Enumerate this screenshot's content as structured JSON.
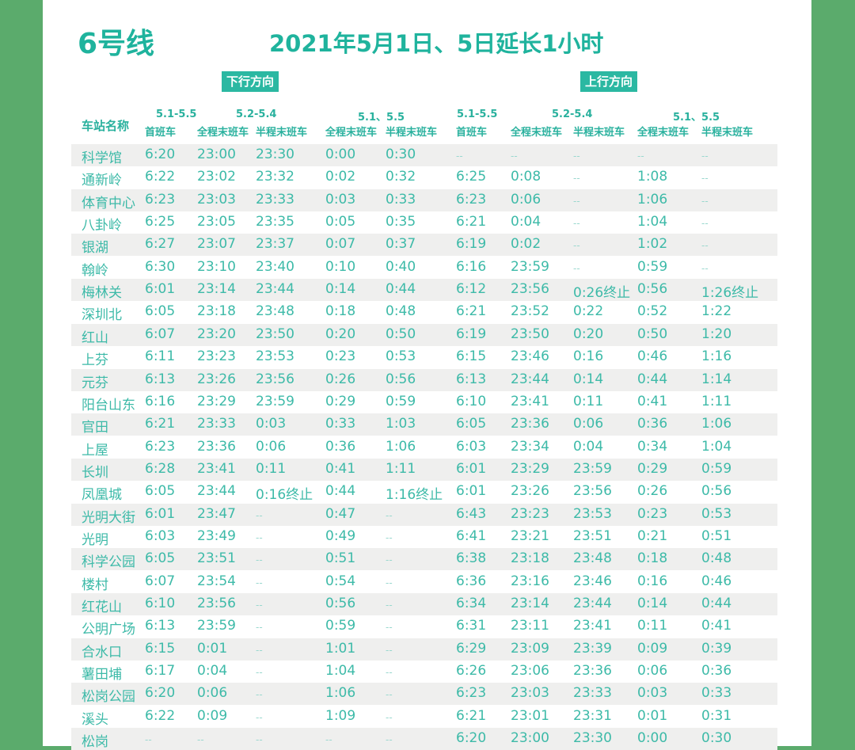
{
  "header": {
    "line": "6号线",
    "subtitle": "2021年5月1日、5日延长1小时"
  },
  "directions": {
    "down": "下行方向",
    "up": "上行方向"
  },
  "colors": {
    "accent": "#27b3a0",
    "side": "#5bab6c",
    "stripe": "#efefee"
  },
  "columns": {
    "station": "车站名称",
    "date_groups": [
      "5.1-5.5",
      "5.2-5.4",
      "5.1、5.5",
      "5.1-5.5",
      "5.2-5.4",
      "5.1、5.5"
    ],
    "labels": [
      "首班车",
      "全程末班车",
      "半程末班车",
      "全程末班车",
      "半程末班车",
      "首班车",
      "全程末班车",
      "半程末班车",
      "全程末班车",
      "半程末班车"
    ]
  },
  "rows": [
    [
      "科学馆",
      "6:20",
      "23:00",
      "23:30",
      "0:00",
      "0:30",
      "--",
      "--",
      "--",
      "--",
      "--"
    ],
    [
      "通新岭",
      "6:22",
      "23:02",
      "23:32",
      "0:02",
      "0:32",
      "6:25",
      "0:08",
      "--",
      "1:08",
      "--"
    ],
    [
      "体育中心",
      "6:23",
      "23:03",
      "23:33",
      "0:03",
      "0:33",
      "6:23",
      "0:06",
      "--",
      "1:06",
      "--"
    ],
    [
      "八卦岭",
      "6:25",
      "23:05",
      "23:35",
      "0:05",
      "0:35",
      "6:21",
      "0:04",
      "--",
      "1:04",
      "--"
    ],
    [
      "银湖",
      "6:27",
      "23:07",
      "23:37",
      "0:07",
      "0:37",
      "6:19",
      "0:02",
      "--",
      "1:02",
      "--"
    ],
    [
      "翰岭",
      "6:30",
      "23:10",
      "23:40",
      "0:10",
      "0:40",
      "6:16",
      "23:59",
      "--",
      "0:59",
      "--"
    ],
    [
      "梅林关",
      "6:01",
      "23:14",
      "23:44",
      "0:14",
      "0:44",
      "6:12",
      "23:56",
      "0:26终止",
      "0:56",
      "1:26终止"
    ],
    [
      "深圳北",
      "6:05",
      "23:18",
      "23:48",
      "0:18",
      "0:48",
      "6:21",
      "23:52",
      "0:22",
      "0:52",
      "1:22"
    ],
    [
      "红山",
      "6:07",
      "23:20",
      "23:50",
      "0:20",
      "0:50",
      "6:19",
      "23:50",
      "0:20",
      "0:50",
      "1:20"
    ],
    [
      "上芬",
      "6:11",
      "23:23",
      "23:53",
      "0:23",
      "0:53",
      "6:15",
      "23:46",
      "0:16",
      "0:46",
      "1:16"
    ],
    [
      "元芬",
      "6:13",
      "23:26",
      "23:56",
      "0:26",
      "0:56",
      "6:13",
      "23:44",
      "0:14",
      "0:44",
      "1:14"
    ],
    [
      "阳台山东",
      "6:16",
      "23:29",
      "23:59",
      "0:29",
      "0:59",
      "6:10",
      "23:41",
      "0:11",
      "0:41",
      "1:11"
    ],
    [
      "官田",
      "6:21",
      "23:33",
      "0:03",
      "0:33",
      "1:03",
      "6:05",
      "23:36",
      "0:06",
      "0:36",
      "1:06"
    ],
    [
      "上屋",
      "6:23",
      "23:36",
      "0:06",
      "0:36",
      "1:06",
      "6:03",
      "23:34",
      "0:04",
      "0:34",
      "1:04"
    ],
    [
      "长圳",
      "6:28",
      "23:41",
      "0:11",
      "0:41",
      "1:11",
      "6:01",
      "23:29",
      "23:59",
      "0:29",
      "0:59"
    ],
    [
      "凤凰城",
      "6:05",
      "23:44",
      "0:16终止",
      "0:44",
      "1:16终止",
      "6:01",
      "23:26",
      "23:56",
      "0:26",
      "0:56"
    ],
    [
      "光明大街",
      "6:01",
      "23:47",
      "--",
      "0:47",
      "--",
      "6:43",
      "23:23",
      "23:53",
      "0:23",
      "0:53"
    ],
    [
      "光明",
      "6:03",
      "23:49",
      "--",
      "0:49",
      "--",
      "6:41",
      "23:21",
      "23:51",
      "0:21",
      "0:51"
    ],
    [
      "科学公园",
      "6:05",
      "23:51",
      "--",
      "0:51",
      "--",
      "6:38",
      "23:18",
      "23:48",
      "0:18",
      "0:48"
    ],
    [
      "楼村",
      "6:07",
      "23:54",
      "--",
      "0:54",
      "--",
      "6:36",
      "23:16",
      "23:46",
      "0:16",
      "0:46"
    ],
    [
      "红花山",
      "6:10",
      "23:56",
      "--",
      "0:56",
      "--",
      "6:34",
      "23:14",
      "23:44",
      "0:14",
      "0:44"
    ],
    [
      "公明广场",
      "6:13",
      "23:59",
      "--",
      "0:59",
      "--",
      "6:31",
      "23:11",
      "23:41",
      "0:11",
      "0:41"
    ],
    [
      "合水口",
      "6:15",
      "0:01",
      "--",
      "1:01",
      "--",
      "6:29",
      "23:09",
      "23:39",
      "0:09",
      "0:39"
    ],
    [
      "薯田埔",
      "6:17",
      "0:04",
      "--",
      "1:04",
      "--",
      "6:26",
      "23:06",
      "23:36",
      "0:06",
      "0:36"
    ],
    [
      "松岗公园",
      "6:20",
      "0:06",
      "--",
      "1:06",
      "--",
      "6:23",
      "23:03",
      "23:33",
      "0:03",
      "0:33"
    ],
    [
      "溪头",
      "6:22",
      "0:09",
      "--",
      "1:09",
      "--",
      "6:21",
      "23:01",
      "23:31",
      "0:01",
      "0:31"
    ],
    [
      "松岗",
      "--",
      "--",
      "--",
      "--",
      "--",
      "6:20",
      "23:00",
      "23:30",
      "0:00",
      "0:30"
    ]
  ]
}
